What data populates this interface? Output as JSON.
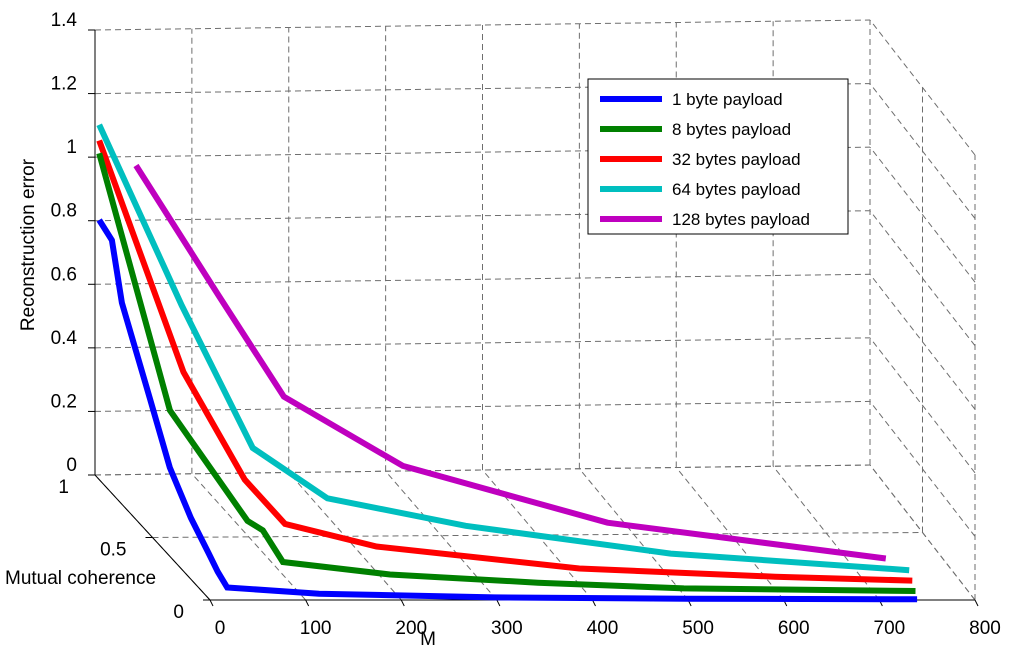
{
  "chart_data": {
    "type": "line",
    "projection": "3d",
    "title": "",
    "xlabel": "M",
    "ylabel": "Mutual coherence",
    "zlabel": "Reconstruction error",
    "xlim": [
      0,
      800
    ],
    "ylim": [
      0,
      1
    ],
    "zlim": [
      0,
      1.4
    ],
    "x_ticks": [
      "0",
      "100",
      "200",
      "300",
      "400",
      "500",
      "600",
      "700",
      "800"
    ],
    "y_ticks": [
      "0",
      "0.5",
      "1"
    ],
    "z_ticks": [
      "0",
      "0.2",
      "0.4",
      "0.6",
      "0.8",
      "1",
      "1.2",
      "1.4"
    ],
    "grid": true,
    "legend_position": "top-right",
    "series": [
      {
        "name": "1 byte payload",
        "color": "#0000ff",
        "x": [
          2,
          8,
          10,
          15,
          18,
          22,
          25,
          26,
          30,
          120,
          300,
          500,
          740
        ],
        "y": [
          0.98,
          0.92,
          0.85,
          0.65,
          0.5,
          0.35,
          0.22,
          0.15,
          0.1,
          0.05,
          0.02,
          0.01,
          0.005
        ],
        "z": [
          0.81,
          0.77,
          0.6,
          0.38,
          0.22,
          0.12,
          0.06,
          0.03,
          0.0,
          0.0,
          0.0,
          0.0,
          0.0
        ]
      },
      {
        "name": "8 bytes payload",
        "color": "#008000",
        "x": [
          2,
          30,
          75,
          85,
          100,
          200,
          350,
          500,
          740
        ],
        "y": [
          0.98,
          0.6,
          0.3,
          0.25,
          0.2,
          0.1,
          0.06,
          0.04,
          0.02
        ],
        "z": [
          1.02,
          0.36,
          0.13,
          0.12,
          0.04,
          0.04,
          0.03,
          0.02,
          0.02
        ]
      },
      {
        "name": "32 bytes payload",
        "color": "#ff0000",
        "x": [
          2,
          50,
          90,
          120,
          200,
          400,
          600,
          740
        ],
        "y": [
          0.98,
          0.65,
          0.45,
          0.35,
          0.22,
          0.12,
          0.08,
          0.05
        ],
        "z": [
          1.06,
          0.46,
          0.2,
          0.1,
          0.08,
          0.05,
          0.04,
          0.04
        ]
      },
      {
        "name": "64 bytes payload",
        "color": "#00bfbf",
        "x": [
          2,
          60,
          110,
          170,
          300,
          500,
          740
        ],
        "y": [
          0.98,
          0.75,
          0.55,
          0.4,
          0.28,
          0.16,
          0.08
        ],
        "z": [
          1.11,
          0.63,
          0.26,
          0.16,
          0.12,
          0.08,
          0.06
        ]
      },
      {
        "name": "128 bytes payload",
        "color": "#bf00bf",
        "x": [
          40,
          110,
          160,
          260,
          450,
          720
        ],
        "y": [
          0.98,
          0.85,
          0.7,
          0.5,
          0.3,
          0.12
        ],
        "z": [
          0.98,
          0.62,
          0.36,
          0.22,
          0.12,
          0.08
        ]
      }
    ]
  }
}
